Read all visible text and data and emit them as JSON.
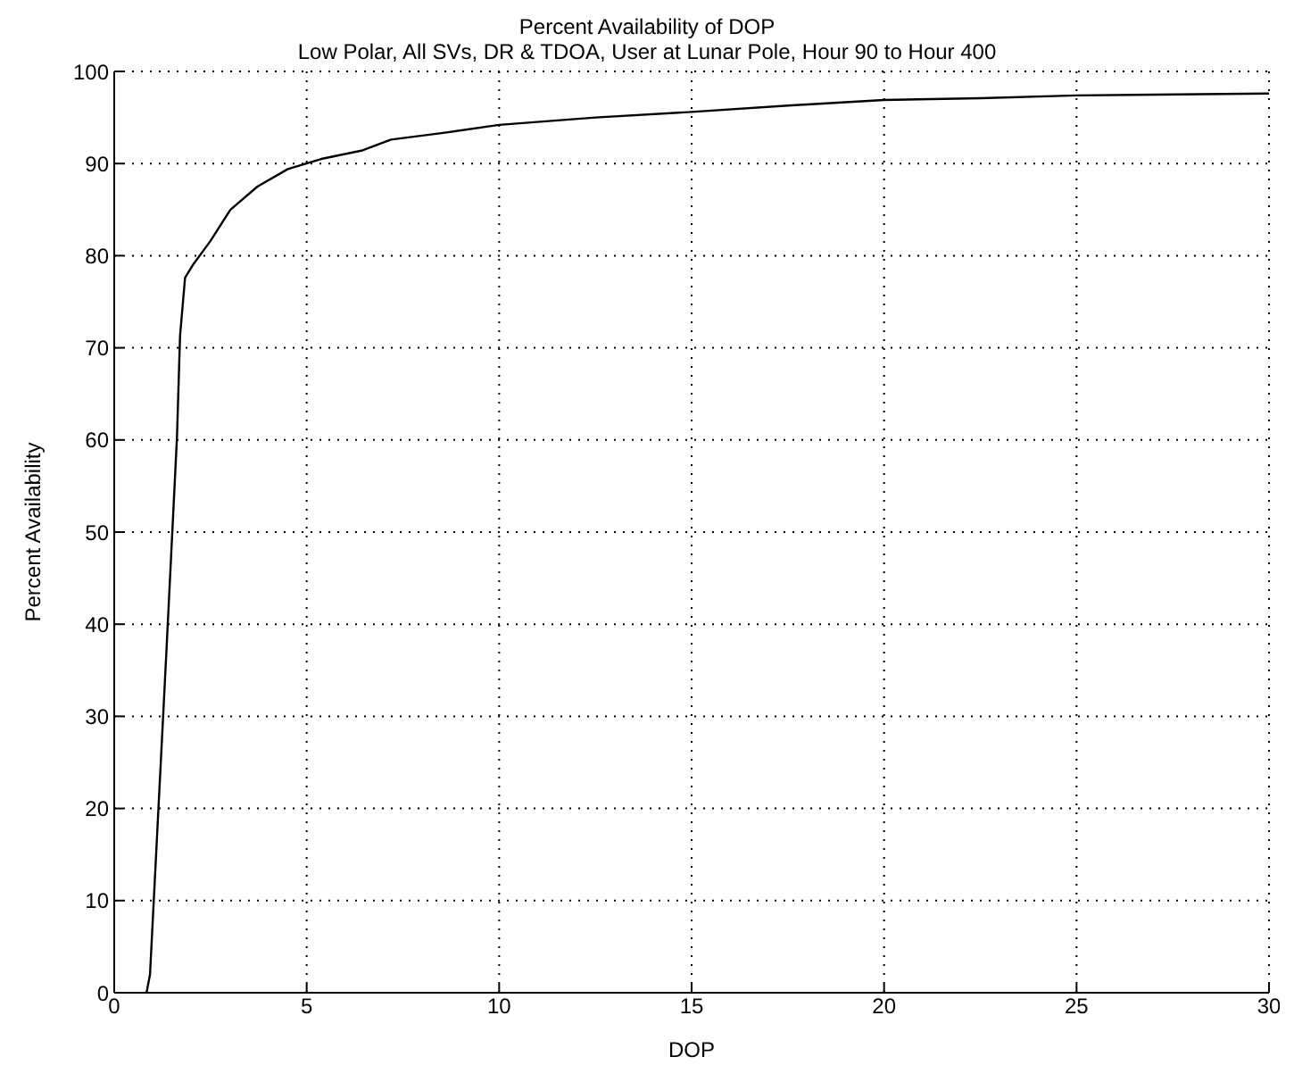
{
  "chart_data": {
    "type": "line",
    "title": "Percent Availability of DOP",
    "subtitle": "Low Polar, All SVs, DR & TDOA, User at Lunar Pole, Hour 90 to Hour 400",
    "xlabel": "DOP",
    "ylabel": "Percent Availability",
    "x": [
      0.84,
      0.93,
      1.36,
      1.63,
      1.71,
      1.84,
      2.06,
      2.5,
      3.02,
      3.72,
      4.51,
      5.38,
      6.42,
      7.19,
      8.5,
      10,
      12.5,
      15,
      17.5,
      20,
      22.5,
      25,
      30
    ],
    "series": [
      {
        "color": "#000000",
        "values": [
          0,
          2,
          37.4,
          60.3,
          71.3,
          77.6,
          79.1,
          81.6,
          85,
          87.5,
          89.4,
          90.5,
          91.4,
          92.6,
          93.3,
          94.2,
          95,
          95.6,
          96.3,
          96.9,
          97.1,
          97.4,
          97.6
        ]
      }
    ],
    "xlim": [
      0,
      30
    ],
    "xticks": [
      0,
      5,
      10,
      15,
      20,
      25,
      30
    ],
    "ylim": [
      0,
      100
    ],
    "yticks": [
      0,
      10,
      20,
      30,
      40,
      50,
      60,
      70,
      80,
      90,
      100
    ],
    "grid": true,
    "legend": false,
    "marker": "none",
    "line_style": "solid"
  }
}
